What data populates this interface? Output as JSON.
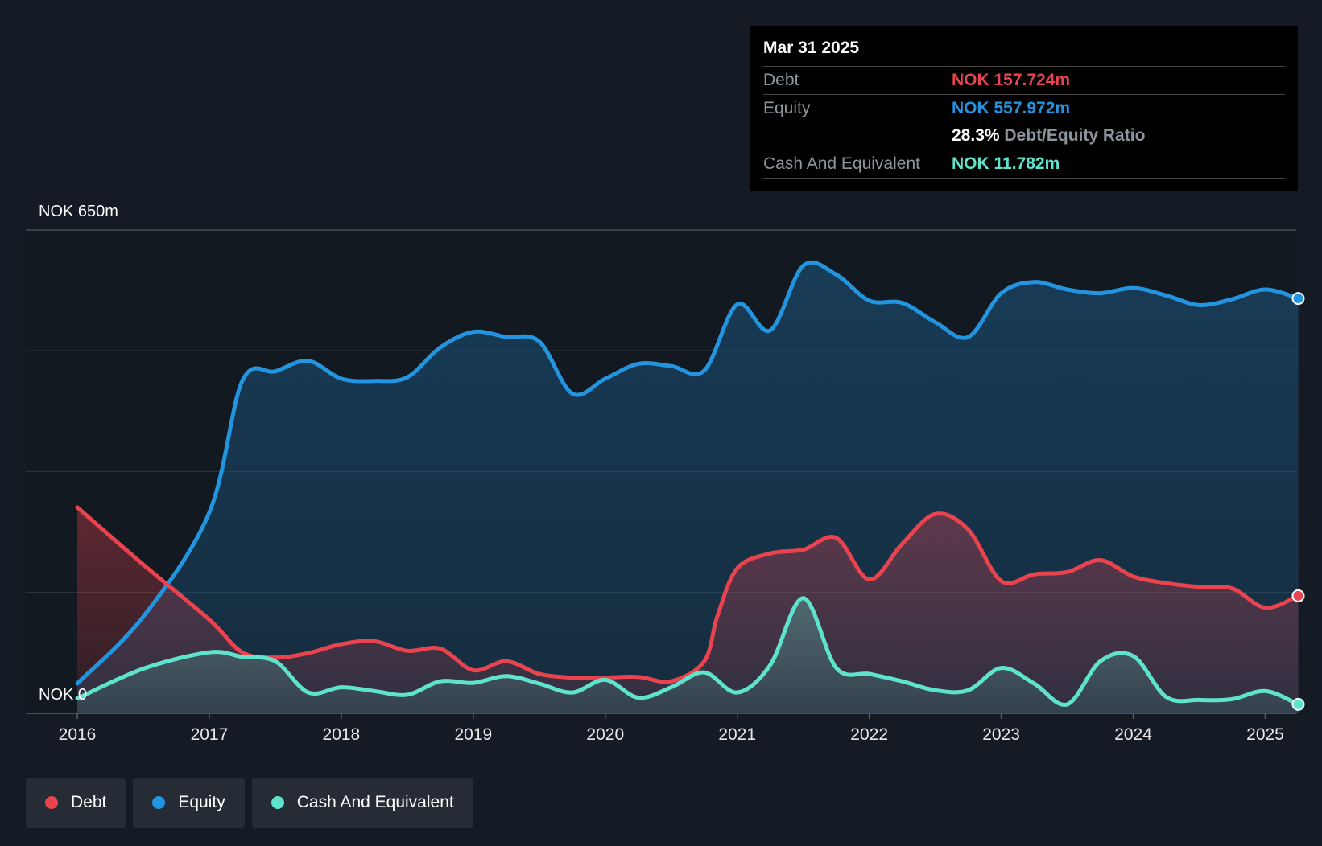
{
  "chart_data": {
    "type": "area",
    "y_top_label": "NOK 650m",
    "y_bottom_label": "NOK 0",
    "ylim": [
      0,
      650
    ],
    "x_ticks": [
      "2016",
      "2017",
      "2018",
      "2019",
      "2020",
      "2021",
      "2022",
      "2023",
      "2024",
      "2025"
    ],
    "series": [
      {
        "name": "Debt",
        "color": "#e8434f",
        "points": [
          [
            2016.0,
            277
          ],
          [
            2016.5,
            200
          ],
          [
            2017.0,
            126
          ],
          [
            2017.25,
            82
          ],
          [
            2017.5,
            75
          ],
          [
            2017.75,
            81
          ],
          [
            2018.0,
            93
          ],
          [
            2018.25,
            97
          ],
          [
            2018.5,
            84
          ],
          [
            2018.75,
            87
          ],
          [
            2019.0,
            58
          ],
          [
            2019.25,
            70
          ],
          [
            2019.5,
            53
          ],
          [
            2019.75,
            48
          ],
          [
            2020.0,
            48
          ],
          [
            2020.25,
            49
          ],
          [
            2020.5,
            43
          ],
          [
            2020.75,
            70
          ],
          [
            2020.85,
            131
          ],
          [
            2021.0,
            195
          ],
          [
            2021.25,
            215
          ],
          [
            2021.5,
            220
          ],
          [
            2021.75,
            236
          ],
          [
            2022.0,
            180
          ],
          [
            2022.25,
            228
          ],
          [
            2022.5,
            268
          ],
          [
            2022.75,
            247
          ],
          [
            2023.0,
            178
          ],
          [
            2023.25,
            187
          ],
          [
            2023.5,
            190
          ],
          [
            2023.75,
            206
          ],
          [
            2024.0,
            184
          ],
          [
            2024.25,
            175
          ],
          [
            2024.5,
            170
          ],
          [
            2024.75,
            168
          ],
          [
            2025.0,
            142
          ],
          [
            2025.25,
            158
          ]
        ]
      },
      {
        "name": "Equity",
        "color": "#2394df",
        "points": [
          [
            2016.0,
            40
          ],
          [
            2016.5,
            130
          ],
          [
            2017.0,
            270
          ],
          [
            2017.25,
            447
          ],
          [
            2017.5,
            460
          ],
          [
            2017.75,
            474
          ],
          [
            2018.0,
            450
          ],
          [
            2018.25,
            447
          ],
          [
            2018.5,
            452
          ],
          [
            2018.75,
            492
          ],
          [
            2019.0,
            513
          ],
          [
            2019.25,
            506
          ],
          [
            2019.5,
            500
          ],
          [
            2019.75,
            430
          ],
          [
            2020.0,
            450
          ],
          [
            2020.25,
            470
          ],
          [
            2020.5,
            467
          ],
          [
            2020.75,
            461
          ],
          [
            2021.0,
            550
          ],
          [
            2021.25,
            515
          ],
          [
            2021.5,
            602
          ],
          [
            2021.75,
            590
          ],
          [
            2022.0,
            555
          ],
          [
            2022.25,
            552
          ],
          [
            2022.5,
            526
          ],
          [
            2022.75,
            506
          ],
          [
            2023.0,
            565
          ],
          [
            2023.25,
            580
          ],
          [
            2023.5,
            570
          ],
          [
            2023.75,
            565
          ],
          [
            2024.0,
            572
          ],
          [
            2024.25,
            562
          ],
          [
            2024.5,
            549
          ],
          [
            2024.75,
            557
          ],
          [
            2025.0,
            570
          ],
          [
            2025.25,
            558
          ]
        ]
      },
      {
        "name": "Cash And Equivalent",
        "color": "#5ee3cc",
        "points": [
          [
            2016.0,
            20
          ],
          [
            2016.5,
            60
          ],
          [
            2017.0,
            82
          ],
          [
            2017.25,
            76
          ],
          [
            2017.5,
            70
          ],
          [
            2017.75,
            28
          ],
          [
            2018.0,
            35
          ],
          [
            2018.25,
            30
          ],
          [
            2018.5,
            25
          ],
          [
            2018.75,
            43
          ],
          [
            2019.0,
            41
          ],
          [
            2019.25,
            50
          ],
          [
            2019.5,
            40
          ],
          [
            2019.75,
            28
          ],
          [
            2020.0,
            45
          ],
          [
            2020.25,
            21
          ],
          [
            2020.5,
            35
          ],
          [
            2020.75,
            55
          ],
          [
            2021.0,
            28
          ],
          [
            2021.25,
            65
          ],
          [
            2021.5,
            155
          ],
          [
            2021.75,
            61
          ],
          [
            2022.0,
            53
          ],
          [
            2022.25,
            43
          ],
          [
            2022.5,
            31
          ],
          [
            2022.75,
            31
          ],
          [
            2023.0,
            61
          ],
          [
            2023.25,
            40
          ],
          [
            2023.5,
            12
          ],
          [
            2023.75,
            70
          ],
          [
            2024.0,
            77
          ],
          [
            2024.25,
            22
          ],
          [
            2024.5,
            18
          ],
          [
            2024.75,
            19
          ],
          [
            2025.0,
            30
          ],
          [
            2025.25,
            12
          ]
        ]
      }
    ],
    "legend": [
      "Debt",
      "Equity",
      "Cash And Equivalent"
    ],
    "legend_position": "bottom-left",
    "grid": true
  },
  "tooltip": {
    "date": "Mar 31 2025",
    "debt_label": "Debt",
    "debt_value": "NOK 157.724m",
    "equity_label": "Equity",
    "equity_value": "NOK 557.972m",
    "ratio_value": "28.3%",
    "ratio_label": "Debt/Equity Ratio",
    "cash_label": "Cash And Equivalent",
    "cash_value": "NOK 11.782m"
  },
  "legend": {
    "debt": "Debt",
    "equity": "Equity",
    "cash": "Cash And Equivalent"
  },
  "colors": {
    "debt": "#e8434f",
    "equity": "#2394df",
    "cash": "#5ee3cc",
    "background": "#151b24"
  }
}
